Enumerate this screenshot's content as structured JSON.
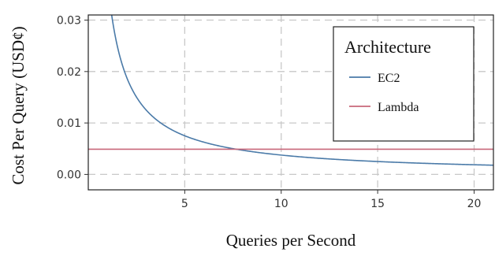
{
  "chart_data": {
    "type": "line",
    "title": "",
    "xlabel": "Queries per Second",
    "ylabel": "Cost Per Query (USD¢)",
    "xlim": [
      0,
      21
    ],
    "ylim": [
      -0.003,
      0.031
    ],
    "xticks": [
      5,
      10,
      15,
      20
    ],
    "xtick_labels": [
      "5",
      "10",
      "15",
      "20"
    ],
    "yticks": [
      0.0,
      0.01,
      0.02,
      0.03
    ],
    "ytick_labels": [
      "0.00",
      "0.01",
      "0.02",
      "0.03"
    ],
    "grid": true,
    "legend": {
      "title": "Architecture",
      "placement": "top-right",
      "entries": [
        "EC2",
        "Lambda"
      ]
    },
    "series": [
      {
        "name": "EC2",
        "color": "#4a7aa8",
        "style": "solid",
        "x": [
          1.2,
          1.5,
          2,
          2.5,
          3,
          3.5,
          4,
          5,
          6,
          7,
          8,
          9,
          10,
          11,
          12,
          13,
          14,
          15,
          16,
          17,
          18,
          19,
          20,
          21
        ],
        "y": [
          0.0313,
          0.025,
          0.0188,
          0.015,
          0.0125,
          0.0107,
          0.0094,
          0.0075,
          0.00625,
          0.00536,
          0.00469,
          0.00417,
          0.00375,
          0.00341,
          0.00313,
          0.00288,
          0.00268,
          0.0025,
          0.00234,
          0.00221,
          0.00208,
          0.00197,
          0.00188,
          0.00179
        ]
      },
      {
        "name": "Lambda",
        "color": "#c8677a",
        "style": "solid",
        "x": [
          0,
          21
        ],
        "y": [
          0.0049,
          0.0049
        ]
      }
    ]
  }
}
